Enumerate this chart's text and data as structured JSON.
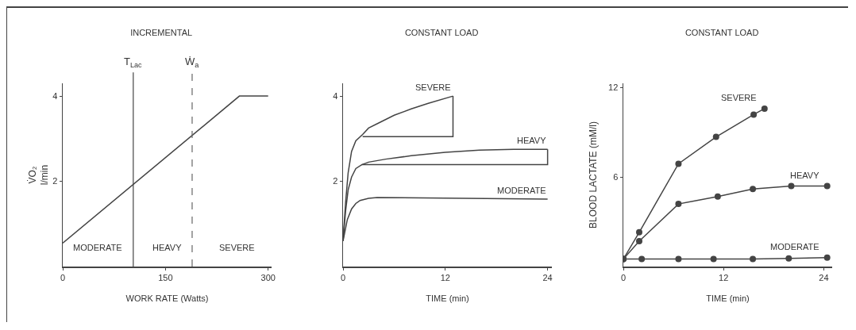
{
  "chart_data": [
    {
      "type": "line",
      "title": "INCREMENTAL",
      "xlabel": "WORK RATE (Watts)",
      "ylabel": "V̇O₂\nl/min",
      "xlim": [
        0,
        305
      ],
      "ylim": [
        0,
        4.3
      ],
      "xticks": [
        0,
        150,
        300
      ],
      "yticks": [
        2,
        4
      ],
      "grid": false,
      "legend": false,
      "marker": "none",
      "line_style": "solid",
      "series": [
        {
          "color": "#444444",
          "x": [
            0,
            258,
            300
          ],
          "values": [
            0.55,
            4,
            4
          ]
        }
      ],
      "ref_lines": [
        {
          "axis": "x",
          "value": 103,
          "label": "T$_{Lac}$",
          "color": "#444444",
          "line_style": "solid"
        },
        {
          "axis": "x",
          "value": 189,
          "label": "Ẇ$_{a}$",
          "color": "#666666",
          "line_style": "dashed"
        }
      ],
      "annotations": [
        "MODERATE",
        "HEAVY",
        "SEVERE"
      ]
    },
    {
      "type": "line",
      "title": "CONSTANT LOAD",
      "xlabel": "TIME (min)",
      "xlim": [
        0,
        24.5
      ],
      "ylim": [
        0,
        4.3
      ],
      "xticks": [
        0,
        12,
        24
      ],
      "yticks": [
        2,
        4
      ],
      "grid": false,
      "legend": false,
      "marker": "none",
      "line_style": "solid",
      "series": [
        {
          "name": "SEVERE",
          "color": "#444444",
          "x": [
            0,
            0.3,
            0.6,
            1,
            1.5,
            2.3,
            3,
            4,
            6,
            8,
            10,
            12.9
          ],
          "values": [
            0.6,
            1.5,
            2.2,
            2.7,
            2.95,
            3.1,
            3.25,
            3.35,
            3.55,
            3.7,
            3.83,
            4.0
          ]
        },
        {
          "color": "#444444",
          "x": [
            2.3,
            12.9,
            12.9
          ],
          "values": [
            3.05,
            3.05,
            4.0
          ]
        },
        {
          "name": "HEAVY",
          "color": "#444444",
          "x": [
            0,
            0.3,
            0.6,
            1,
            1.5,
            2.2,
            3,
            5,
            8,
            12,
            16,
            20,
            24
          ],
          "values": [
            0.6,
            1.3,
            1.8,
            2.1,
            2.3,
            2.39,
            2.45,
            2.52,
            2.6,
            2.68,
            2.73,
            2.75,
            2.75
          ]
        },
        {
          "color": "#444444",
          "x": [
            2.2,
            24,
            24
          ],
          "values": [
            2.39,
            2.39,
            2.75
          ]
        },
        {
          "name": "MODERATE",
          "color": "#444444",
          "x": [
            0,
            0.5,
            1,
            1.5,
            2,
            3,
            4,
            24
          ],
          "values": [
            0.6,
            1.1,
            1.35,
            1.48,
            1.55,
            1.6,
            1.62,
            1.58
          ]
        }
      ]
    },
    {
      "type": "line",
      "title": "CONSTANT LOAD",
      "xlabel": "TIME (min)",
      "ylabel": "BLOOD LACTATE (mM/l)",
      "xlim": [
        0,
        25
      ],
      "ylim": [
        0,
        12.3
      ],
      "xticks": [
        0,
        12,
        24
      ],
      "yticks": [
        6,
        12
      ],
      "grid": false,
      "legend": false,
      "marker": "circle",
      "line_style": "solid",
      "series": [
        {
          "name": "SEVERE",
          "color": "#444444",
          "x": [
            0,
            1.9,
            6.6,
            11.1,
            15.6,
            16.9
          ],
          "values": [
            0.5,
            2.3,
            6.9,
            8.7,
            10.2,
            10.6
          ]
        },
        {
          "name": "HEAVY",
          "color": "#444444",
          "x": [
            0,
            1.9,
            6.6,
            11.3,
            15.5,
            20.1,
            24.4
          ],
          "values": [
            0.5,
            1.7,
            4.2,
            4.7,
            5.2,
            5.4,
            5.4
          ]
        },
        {
          "name": "MODERATE",
          "color": "#444444",
          "x": [
            0,
            2.2,
            6.6,
            10.8,
            15.5,
            19.8,
            24.4
          ],
          "values": [
            0.5,
            0.5,
            0.5,
            0.5,
            0.5,
            0.55,
            0.6
          ]
        }
      ]
    }
  ]
}
